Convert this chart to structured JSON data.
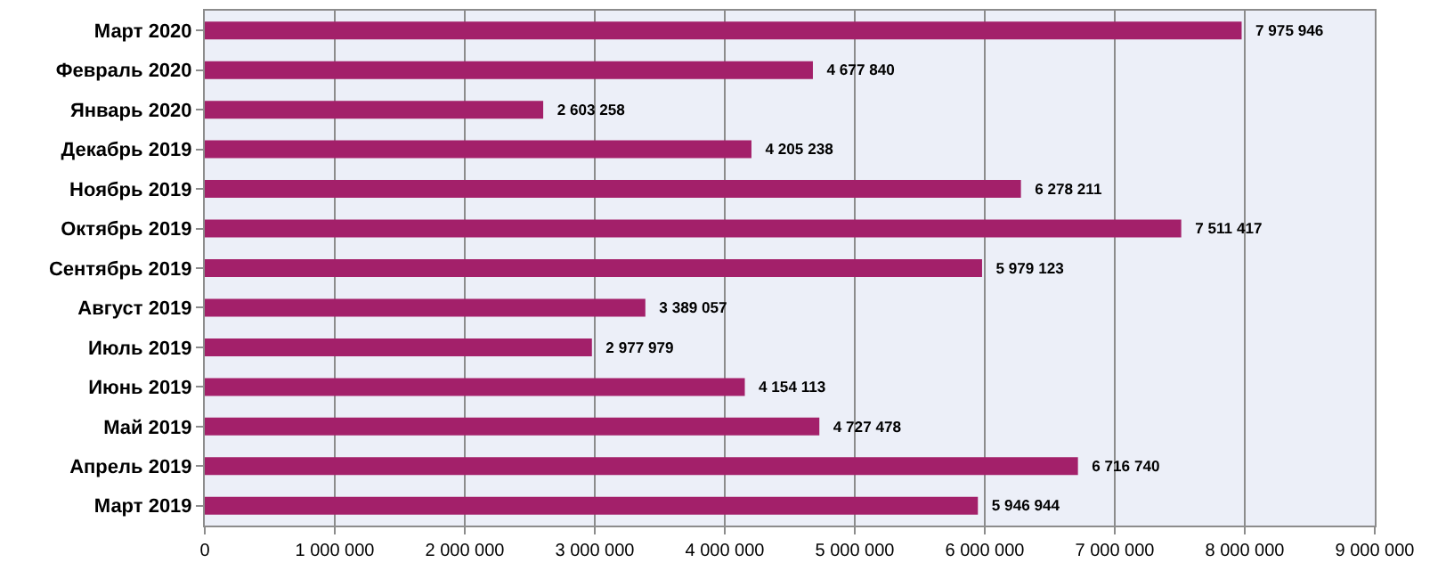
{
  "chart_data": {
    "type": "bar",
    "orientation": "horizontal",
    "categories": [
      "Март 2020",
      "Февраль 2020",
      "Январь 2020",
      "Декабрь 2019",
      "Ноябрь 2019",
      "Октябрь 2019",
      "Сентябрь 2019",
      "Август 2019",
      "Июль 2019",
      "Июнь 2019",
      "Май 2019",
      "Апрель 2019",
      "Март 2019"
    ],
    "values": [
      7975946,
      4677840,
      2603258,
      4205238,
      6278211,
      7511417,
      5979123,
      3389057,
      2977979,
      4154113,
      4727478,
      6716740,
      5946944
    ],
    "color": "#a3206a",
    "data_labels": true,
    "xlim": [
      0,
      9000000
    ],
    "xticks": [
      0,
      {
        "value": 1000000,
        "label": "1 000 000"
      },
      {
        "value": 2000000,
        "label": "2 000 000"
      },
      {
        "value": 3000000,
        "label": "3 000 000"
      },
      {
        "value": 4000000,
        "label": "4 000 000"
      },
      {
        "value": 5000000,
        "label": "5 000 000"
      },
      {
        "value": 6000000,
        "label": "6 000 000"
      },
      {
        "value": 7000000,
        "label": "7 000 000"
      },
      {
        "value": 8000000,
        "label": "8 000 000"
      },
      {
        "value": 9000000,
        "label": "9 000 000"
      }
    ],
    "grid": "x"
  }
}
